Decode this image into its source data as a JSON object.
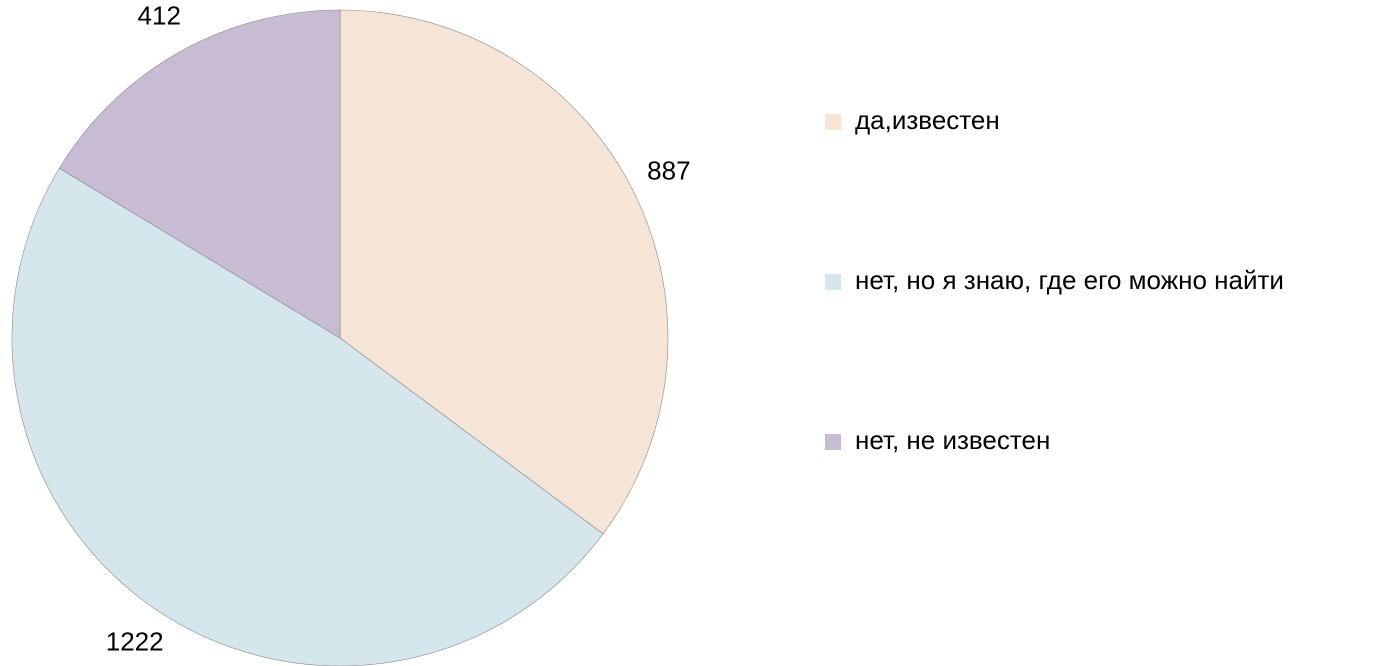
{
  "chart_data": {
    "type": "pie",
    "categories": [
      "да,известен",
      "нет, но я знаю, где его можно найти",
      "нет, не известен"
    ],
    "values": [
      887,
      1222,
      412
    ],
    "colors": [
      "#f6e4d6",
      "#d5e6ec",
      "#c7bcd4"
    ],
    "legend": "right"
  }
}
